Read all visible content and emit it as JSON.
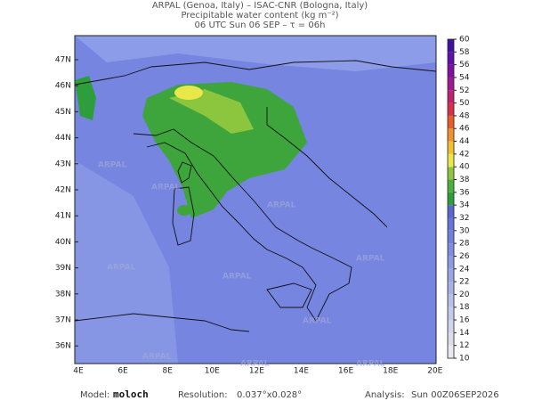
{
  "header": {
    "line1": "ARPAL (Genoa, Italy)  –  ISAC-CNR (Bologna, Italy)",
    "line2": "Precipitable water content (kg m⁻²)",
    "line3": "06 UTC Sun 06 SEP  –  τ = 06h"
  },
  "map": {
    "lat_labels": [
      "47N",
      "46N",
      "45N",
      "44N",
      "43N",
      "42N",
      "41N",
      "40N",
      "39N",
      "38N",
      "37N",
      "36N"
    ],
    "lon_labels": [
      "4E",
      "6E",
      "8E",
      "10E",
      "12E",
      "14E",
      "16E",
      "18E",
      "20E"
    ],
    "watermark": "ARPAL"
  },
  "colorbar": {
    "ticks": [
      10,
      12,
      14,
      16,
      18,
      20,
      22,
      24,
      26,
      28,
      30,
      32,
      34,
      36,
      38,
      40,
      42,
      44,
      46,
      48,
      50,
      52,
      54,
      56,
      58,
      60
    ],
    "colors": [
      "#e8e8ee",
      "#dcdcea",
      "#d0d4ec",
      "#c4caeb",
      "#b8c0ea",
      "#a8b2e8",
      "#9aa6e6",
      "#8c9ae4",
      "#7e8de2",
      "#7080de",
      "#6474d8",
      "#5868d0",
      "#2e9e3c",
      "#4caf3c",
      "#8cc63f",
      "#e8e84a",
      "#f0c030",
      "#f09030",
      "#e85c28",
      "#d8304a",
      "#c02070",
      "#a01890",
      "#8010a0",
      "#6010a8",
      "#4010a0"
    ]
  },
  "footer": {
    "model_label": "Model:",
    "model": "moloch",
    "resolution_label": "Resolution:",
    "resolution": "0.037°x0.028°",
    "analysis_label": "Analysis:",
    "analysis": "Sun 00Z06SEP2026"
  }
}
